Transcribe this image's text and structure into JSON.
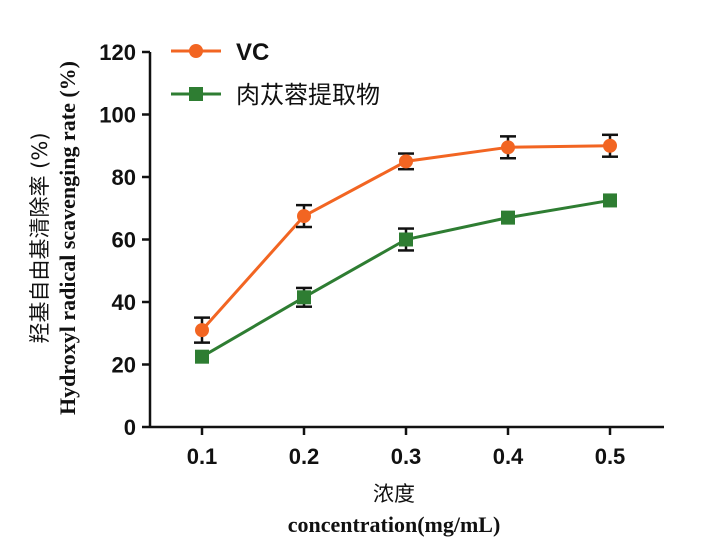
{
  "chart_data": {
    "type": "line",
    "x": [
      0.1,
      0.2,
      0.3,
      0.4,
      0.5
    ],
    "x_tick_labels": [
      "0.1",
      "0.2",
      "0.3",
      "0.4",
      "0.5"
    ],
    "y_tick_labels": [
      "0",
      "20",
      "40",
      "60",
      "80",
      "100",
      "120"
    ],
    "ylim": [
      0,
      120
    ],
    "xlabel_cn": "浓度",
    "xlabel_en": "concentration(mg/mL)",
    "ylabel_cn": "羟基自由基清除率 (%)",
    "ylabel_en": "Hydroxyl radical scavenging rate (%)",
    "legend_position": "top-left",
    "grid": false,
    "series": [
      {
        "name": "VC",
        "color": "#f26522",
        "marker": "circle",
        "values": [
          31,
          67.5,
          85,
          89.5,
          90
        ],
        "errors": [
          4,
          3.5,
          2.5,
          3.5,
          3.5
        ]
      },
      {
        "name": "肉苁蓉提取物",
        "color": "#2e7d32",
        "marker": "square",
        "values": [
          22.5,
          41.5,
          60,
          67,
          72.5
        ],
        "errors": [
          0,
          3,
          3.5,
          0,
          0
        ]
      }
    ]
  }
}
